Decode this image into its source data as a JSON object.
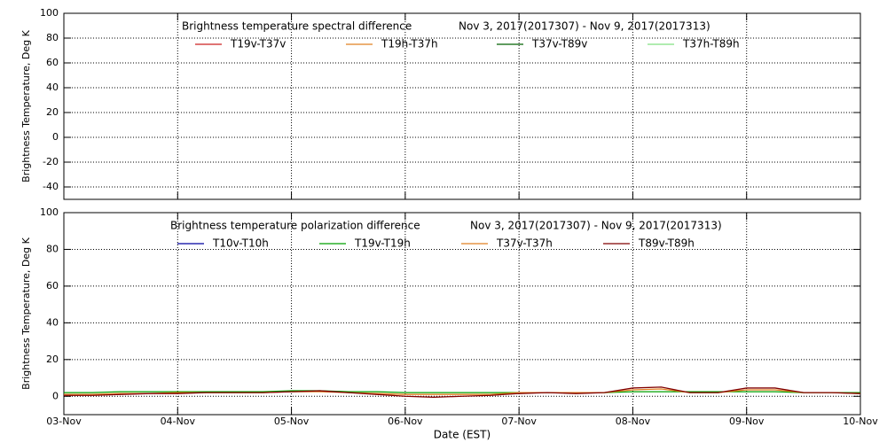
{
  "chart_data": [
    {
      "type": "line",
      "title": "Brightness temperature spectral difference",
      "subtitle": "Nov  3, 2017(2017307) - Nov  9, 2017(2017313)",
      "y_label": "Brightness Temperature, Deg K",
      "xlim": [
        3,
        10
      ],
      "xticks": [
        3,
        4,
        5,
        6,
        7,
        8,
        9,
        10
      ],
      "ylim": [
        -50,
        100
      ],
      "yticks": [
        -40,
        -20,
        0,
        20,
        40,
        60,
        80,
        100
      ],
      "grid": true,
      "x": [
        3,
        10
      ],
      "series": [
        {
          "name": "T19v-T37v",
          "color": "#cc2020",
          "values": [
            null,
            null
          ]
        },
        {
          "name": "T19h-T37h",
          "color": "#e08020",
          "values": [
            null,
            null
          ]
        },
        {
          "name": "T37v-T89v",
          "color": "#006000",
          "values": [
            null,
            null
          ]
        },
        {
          "name": "T37h-T89h",
          "color": "#80e080",
          "values": [
            null,
            null
          ]
        }
      ]
    },
    {
      "type": "line",
      "title": "Brightness temperature polarization difference",
      "subtitle": "Nov  3, 2017(2017307) - Nov  9, 2017(2017313)",
      "y_label": "Brightness Temperature, Deg K",
      "x_label": "Date (EST)",
      "xlim": [
        3,
        10
      ],
      "xticks": [
        {
          "value": 3,
          "label": "03-Nov"
        },
        {
          "value": 4,
          "label": "04-Nov"
        },
        {
          "value": 5,
          "label": "05-Nov"
        },
        {
          "value": 6,
          "label": "06-Nov"
        },
        {
          "value": 7,
          "label": "07-Nov"
        },
        {
          "value": 8,
          "label": "08-Nov"
        },
        {
          "value": 9,
          "label": "09-Nov"
        },
        {
          "value": 10,
          "label": "10-Nov"
        }
      ],
      "ylim": [
        -10,
        100
      ],
      "yticks": [
        0,
        20,
        40,
        60,
        80,
        100
      ],
      "grid": true,
      "x": [
        3,
        3.25,
        3.5,
        3.75,
        4,
        4.25,
        4.5,
        4.75,
        5,
        5.25,
        5.5,
        5.75,
        6,
        6.25,
        6.5,
        6.75,
        7,
        7.25,
        7.5,
        7.75,
        8,
        8.25,
        8.5,
        8.75,
        9,
        9.25,
        9.5,
        9.75,
        10
      ],
      "series": [
        {
          "name": "T10v-T10h",
          "color": "#0000a0",
          "values": [
            null,
            null,
            null,
            null,
            null,
            null,
            null,
            null,
            null,
            null,
            null,
            null,
            null,
            null,
            null,
            null,
            null,
            null,
            null,
            null,
            null,
            null,
            null,
            null,
            null,
            null,
            null,
            null,
            null
          ]
        },
        {
          "name": "T19v-T19h",
          "color": "#00a000",
          "values": [
            2,
            2,
            2.5,
            2.5,
            2.5,
            2.5,
            2.5,
            2.5,
            3,
            3,
            2.5,
            2.5,
            2,
            2,
            2,
            2,
            2,
            2,
            2,
            2,
            2.5,
            2.5,
            2.5,
            2.5,
            2.5,
            2.5,
            2,
            2,
            2
          ]
        },
        {
          "name": "T37v-T37h",
          "color": "#e08020",
          "values": [
            1,
            1,
            1.5,
            1.5,
            2,
            2,
            2,
            2,
            2.5,
            2.5,
            2,
            1.5,
            1,
            1,
            1,
            1,
            2,
            2,
            2,
            2,
            3.5,
            4,
            2,
            2,
            3.5,
            3.5,
            2,
            2,
            1.5
          ]
        },
        {
          "name": "T89v-T89h",
          "color": "#800000",
          "values": [
            0.5,
            0.5,
            1,
            1.5,
            1.5,
            2,
            2,
            2,
            2.5,
            3,
            2,
            1,
            0,
            -0.5,
            0,
            0.5,
            1.5,
            2,
            1.5,
            2,
            4.5,
            5,
            2,
            2,
            4.5,
            4.5,
            2,
            2,
            1.5
          ]
        }
      ]
    }
  ]
}
